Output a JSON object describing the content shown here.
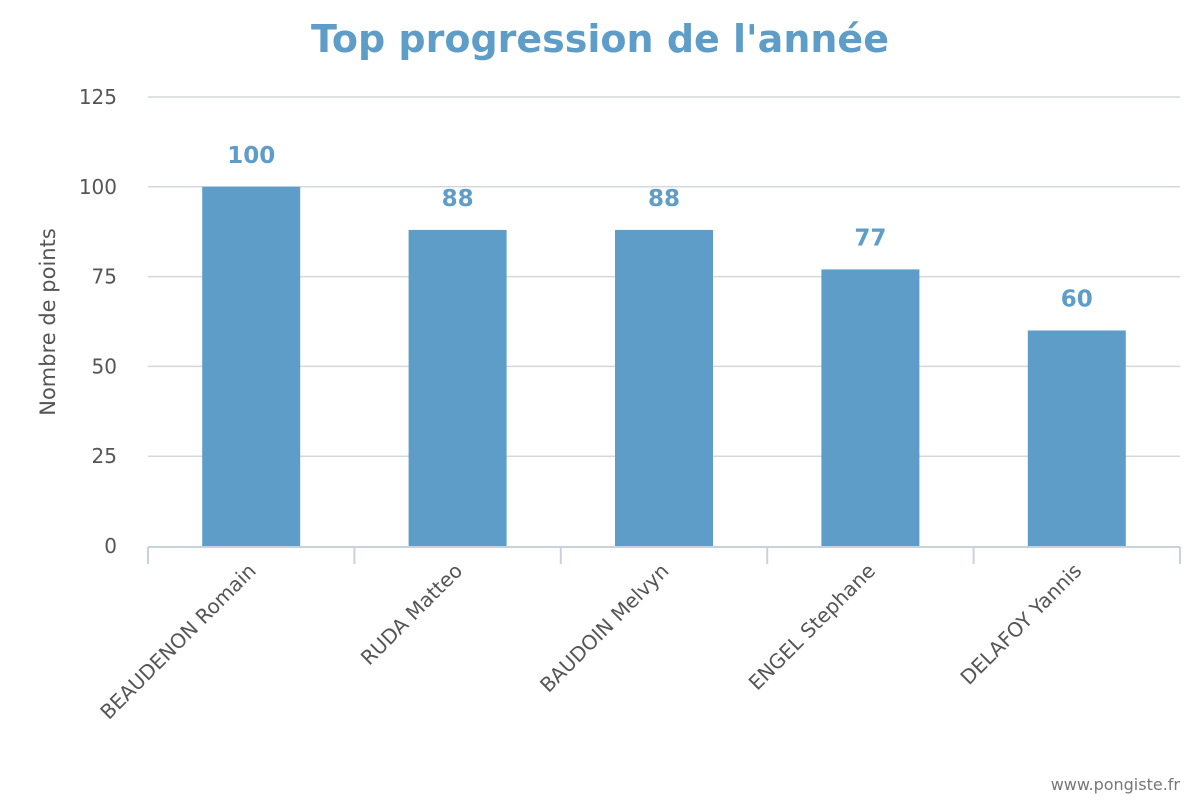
{
  "chart_data": {
    "type": "bar",
    "title": "Top progression de l'année",
    "ylabel": "Nombre de points",
    "xlabel": "",
    "categories": [
      "BEAUDENON Romain",
      "RUDA Matteo",
      "BAUDOIN Melvyn",
      "ENGEL Stephane",
      "DELAFOY Yannis"
    ],
    "values": [
      100,
      88,
      88,
      77,
      60
    ],
    "data_labels": [
      "100",
      "88",
      "88",
      "77",
      "60"
    ],
    "ylim": [
      0,
      125
    ],
    "yticks": [
      0,
      25,
      50,
      75,
      100,
      125
    ],
    "grid": true,
    "legend": "none"
  },
  "footer": {
    "source": "www.pongiste.fr"
  },
  "colors": {
    "bar": "#5e9dc8",
    "title": "#5e9dc8",
    "data_label": "#5e9dc8",
    "grid": "#d4d8dc",
    "axis": "#c8d2dc"
  }
}
